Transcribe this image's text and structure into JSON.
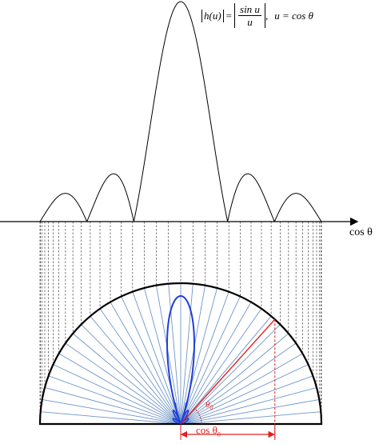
{
  "formula": {
    "h_of_u": "h(u)",
    "equals": "=",
    "numerator": "sin u",
    "denominator": "u",
    "separator": ",",
    "u_def": "u = cos θ"
  },
  "axis": {
    "label": "cos θ"
  },
  "annotations": {
    "angle_symbol": "θ",
    "angle_subscript": "0",
    "span_label": "cos θ",
    "span_subscript": "0"
  },
  "colors": {
    "curve": "#000000",
    "rays": "#6f95c9",
    "lobe": "#1f3fd6",
    "highlight": "#e02020",
    "dashed": "#444444"
  },
  "diagram": {
    "function": "|sin(u)/u|",
    "ray_count": 36,
    "highlight_angle_deg": 48
  }
}
